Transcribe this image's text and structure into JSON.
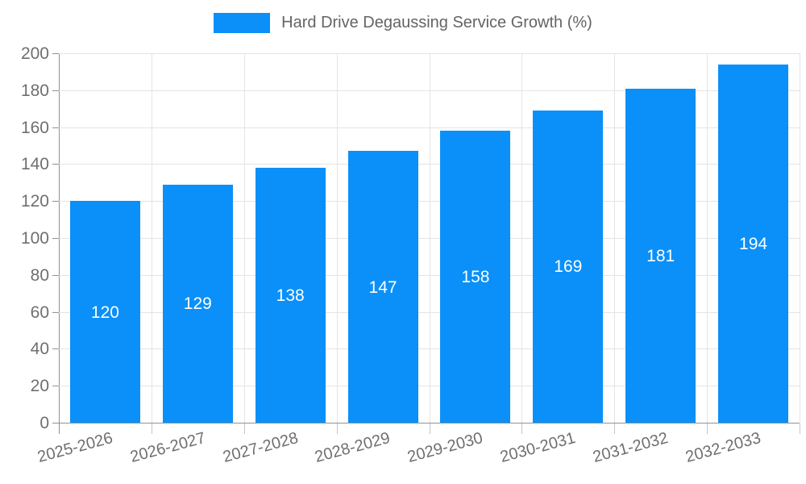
{
  "chart_data": {
    "type": "bar",
    "title": "Hard Drive Degaussing Service Growth (%)",
    "categories": [
      "2025-2026",
      "2026-2027",
      "2027-2028",
      "2028-2029",
      "2029-2030",
      "2030-2031",
      "2031-2032",
      "2032-2033"
    ],
    "series": [
      {
        "name": "Hard Drive Degaussing Service Growth (%)",
        "values": [
          120,
          129,
          138,
          147,
          158,
          169,
          181,
          194
        ]
      }
    ],
    "xlabel": "",
    "ylabel": "",
    "ylim": [
      0,
      200
    ],
    "ytick_step": 20,
    "grid": true,
    "legend_position": "top-center",
    "bar_labels_position": "inside-center",
    "x_label_rotation_deg": -15,
    "colors": {
      "bar": "#0a90f8",
      "bar_label_text": "#ffffff",
      "axis_line": "#929292",
      "grid_line": "#e4e4e4",
      "tick_text": "#6f6f6f",
      "legend_text": "#646464"
    }
  },
  "legend": {
    "swatch_icon": "blue-rect-swatch"
  }
}
